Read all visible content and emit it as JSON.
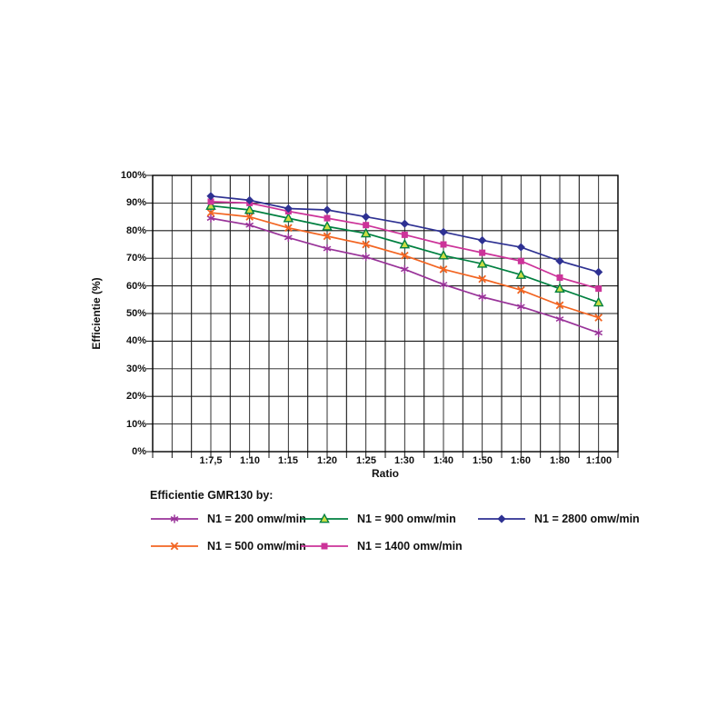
{
  "chart_data": {
    "type": "line",
    "title": "",
    "xlabel": "Ratio",
    "ylabel": "Efficientie (%)",
    "categories": [
      "1:7,5",
      "1:10",
      "1:15",
      "1:20",
      "1:25",
      "1:30",
      "1:40",
      "1:50",
      "1:60",
      "1:80",
      "1:100"
    ],
    "ytick_labels": [
      "100%",
      "90%",
      "80%",
      "70%",
      "60%",
      "50%",
      "40%",
      "30%",
      "20%",
      "10%",
      "0%"
    ],
    "ylim": [
      0,
      100
    ],
    "grid": "horizontal every 10%, vertical at every half-category step",
    "legend_position": "bottom-left, 3 columns, 2 rows",
    "series": [
      {
        "name": "N1 = 200 omw/min",
        "color": "#993399",
        "marker": "asterisk",
        "values": [
          84.5,
          82,
          77.5,
          73.5,
          70.5,
          66,
          60.5,
          56,
          52.5,
          48,
          43
        ]
      },
      {
        "name": "N1 = 500 omw/min",
        "color": "#F26522",
        "marker": "x",
        "values": [
          86.5,
          85,
          81,
          78,
          75,
          71,
          66,
          62.5,
          58.5,
          53,
          48.5
        ]
      },
      {
        "name": "N1 = 900 omw/min",
        "color": "#008040",
        "marker": "triangle-open",
        "marker_fill": "#CCDD44",
        "values": [
          89,
          87.5,
          84.5,
          81.5,
          79,
          75,
          71,
          68,
          64,
          59,
          54
        ]
      },
      {
        "name": "N1 = 1400 omw/min",
        "color": "#CC3399",
        "marker": "square",
        "values": [
          90.5,
          90,
          87,
          84.5,
          82,
          78.5,
          75,
          72,
          69,
          63,
          59
        ]
      },
      {
        "name": "N1 = 2800 omw/min",
        "color": "#2E3192",
        "marker": "diamond",
        "values": [
          92.5,
          91,
          88,
          87.5,
          85,
          82.5,
          79.5,
          76.5,
          74,
          69,
          65
        ]
      }
    ]
  },
  "legend": {
    "title": "Efficientie GMR130 by:"
  },
  "style_colors": {
    "grid": "#1a1a1a",
    "axis_text": "#111111",
    "background": "#ffffff"
  }
}
